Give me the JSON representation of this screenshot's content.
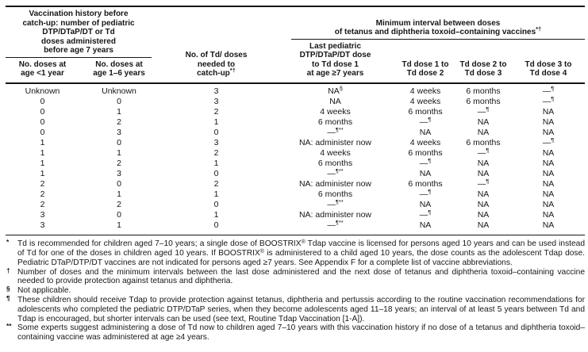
{
  "colors": {
    "text": "#161616",
    "rule": "#161616",
    "background": "#ffffff"
  },
  "table": {
    "header": {
      "group_left": "Vaccination history before\ncatch-up: number of pediatric\nDTP/DTaP/DT or Td\ndoses administered\nbefore age 7 years",
      "col_td_doses": {
        "text": "No. of Td/ doses\nneeded to\ncatch-up",
        "sup": "*†"
      },
      "group_right": {
        "text": "Minimum interval between doses\nof tetanus and diphtheria toxoid–containing vaccines",
        "sup": "*†"
      },
      "sub": [
        "No. doses at\nage <1 year",
        "No. doses at\nage 1–6 years",
        "Last pediatric\nDTP/DTaP/DT dose\nto Td dose 1\nat age ≥7 years",
        "Td dose 1 to\nTd dose 2",
        "Td dose 2 to\nTd dose 3",
        "Td dose 3 to\nTd dose 4"
      ]
    },
    "rows": [
      [
        "Unknown",
        "Unknown",
        "3",
        {
          "t": "NA",
          "s": "§"
        },
        "4 weeks",
        "6 months",
        {
          "t": "—",
          "s": "¶"
        }
      ],
      [
        "0",
        "0",
        "3",
        "NA",
        "4 weeks",
        "6 months",
        {
          "t": "—",
          "s": "¶"
        }
      ],
      [
        "0",
        "1",
        "2",
        "4 weeks",
        "6 months",
        {
          "t": "—",
          "s": "¶"
        },
        "NA"
      ],
      [
        "0",
        "2",
        "1",
        "6 months",
        {
          "t": "—",
          "s": "¶"
        },
        "NA",
        "NA"
      ],
      [
        "0",
        "3",
        "0",
        {
          "t": "—",
          "s": "¶**"
        },
        "NA",
        "NA",
        "NA"
      ],
      [
        "1",
        "0",
        "3",
        "NA: administer now",
        "4 weeks",
        "6 months",
        {
          "t": "—",
          "s": "¶"
        }
      ],
      [
        "1",
        "1",
        "2",
        "4 weeks",
        "6 months",
        {
          "t": "—",
          "s": "¶"
        },
        "NA"
      ],
      [
        "1",
        "2",
        "1",
        "6 months",
        {
          "t": "—",
          "s": "¶"
        },
        "NA",
        "NA"
      ],
      [
        "1",
        "3",
        "0",
        {
          "t": "—",
          "s": "¶**"
        },
        "NA",
        "NA",
        "NA"
      ],
      [
        "2",
        "0",
        "2",
        "NA: administer now",
        "6 months",
        {
          "t": "—",
          "s": "¶"
        },
        "NA"
      ],
      [
        "2",
        "1",
        "1",
        "6 months",
        {
          "t": "—",
          "s": "¶"
        },
        "NA",
        "NA"
      ],
      [
        "2",
        "2",
        "0",
        {
          "t": "—",
          "s": "¶**"
        },
        "NA",
        "NA",
        "NA"
      ],
      [
        "3",
        "0",
        "1",
        "NA: administer now",
        {
          "t": "—",
          "s": "¶"
        },
        "NA",
        "NA"
      ],
      [
        "3",
        "1",
        "0",
        {
          "t": "—",
          "s": "¶**"
        },
        "NA",
        "NA",
        "NA"
      ]
    ]
  },
  "footnotes": [
    {
      "marker": "*",
      "text": "Td is recommended for children aged 7–10 years; a single dose of BOOSTRIX® Tdap vaccine is licensed for persons aged 10 years and can be used instead of Td for one of the doses in children aged 10 years. If BOOSTRIX® is administered to a child aged 10 years, the dose counts as the adolescent Tdap dose. Pediatric DTaP/DTP/DT vaccines are not indicated for persons aged ≥7 years. See Appendix F for a complete list of vaccine abbreviations."
    },
    {
      "marker": "†",
      "text": "Number of doses and the minimum intervals between the last dose administered and the next dose of tetanus and diphtheria toxoid–containing vaccine needed to provide protection against tetanus and diphtheria."
    },
    {
      "marker": "§",
      "text": "Not applicable."
    },
    {
      "marker": "¶",
      "text": "These children should receive Tdap to provide protection against tetanus, diphtheria and pertussis according to the routine vaccination recommendations for adolescents who completed the pediatric DTP/DTaP series, when they become adolescents aged 11–18 years; an interval of at least 5 years between Td and Tdap is encouraged, but shorter intervals can be used (see text, Routine Tdap Vaccination [1-A])."
    },
    {
      "marker": "**",
      "text": "Some experts suggest administering a dose of Td now to children aged 7–10 years with this vaccination history if no dose of a tetanus and diphtheria toxoid–containing vaccine was administered at age ≥4 years."
    }
  ]
}
